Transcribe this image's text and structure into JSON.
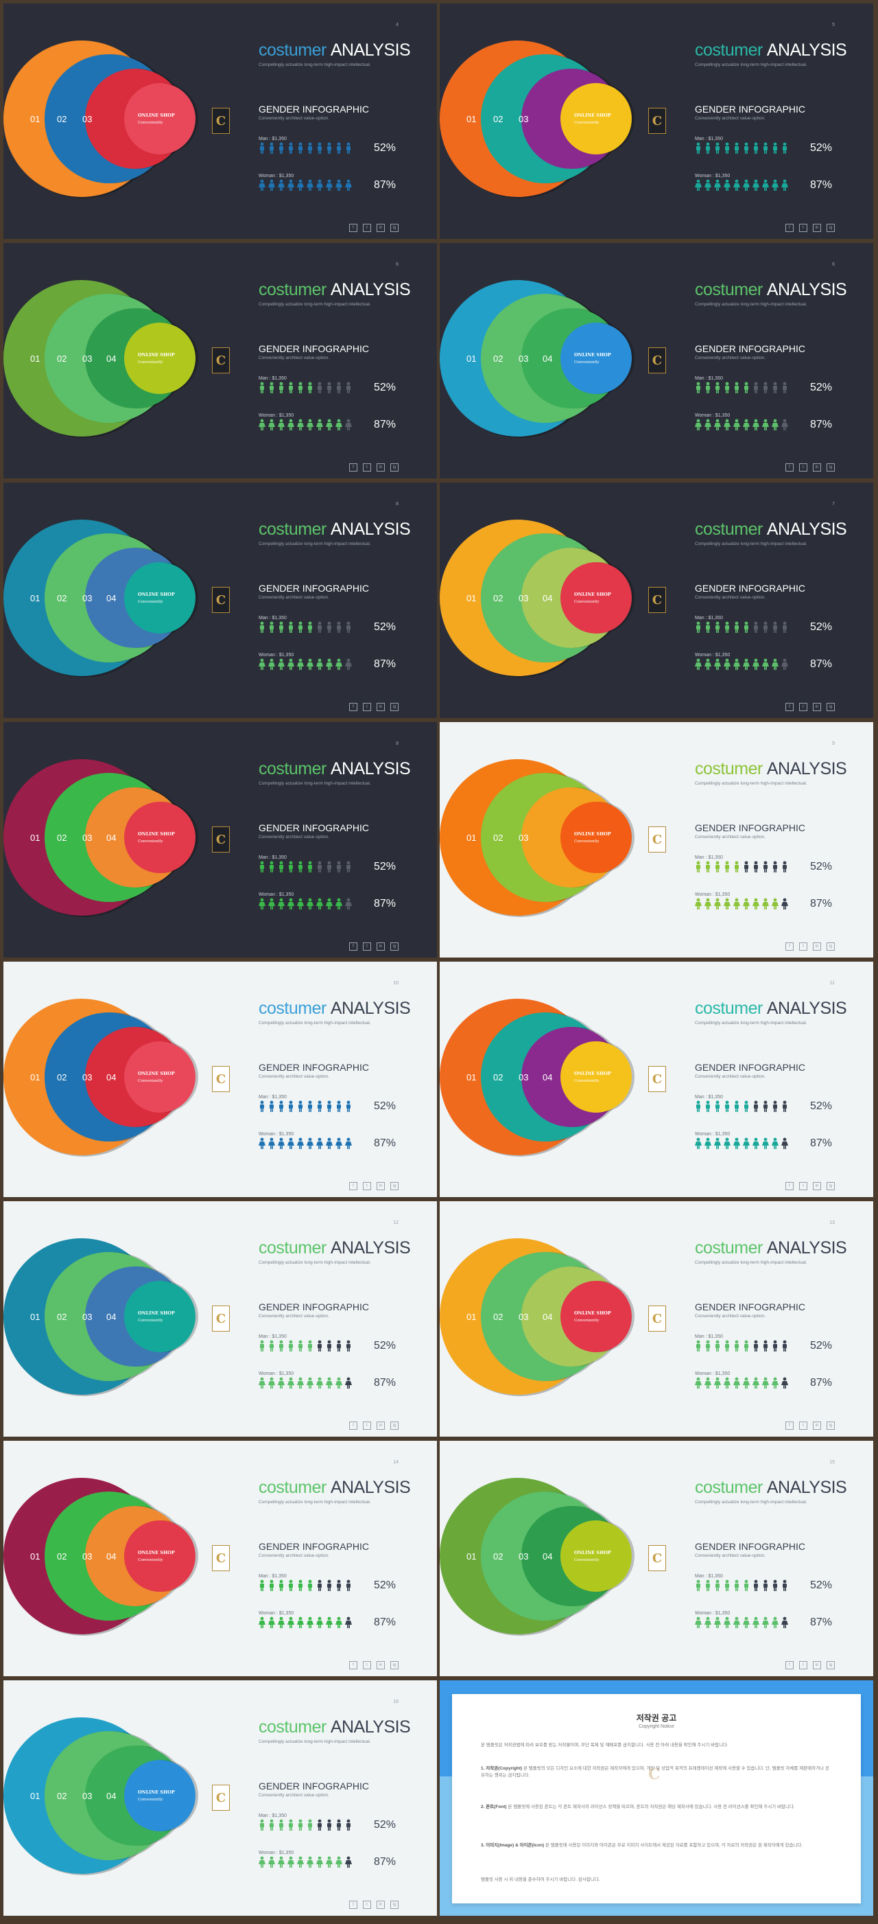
{
  "slides": [
    {
      "theme": "dark",
      "page": "4",
      "title_accent": "costumer",
      "title_main": "ANALYSIS",
      "title_accent_color": "#3aa0d8",
      "subtitle": "Compellingly actualize long-term high-impact intellectual.",
      "ring_colors": [
        "#f48a28",
        "#1f73b2",
        "#d92c3c",
        "#e8485a"
      ],
      "ring_labels": [
        "01",
        "02",
        "03"
      ],
      "shop_title": "ONLINE SHOP",
      "shop_sub": "Conveniently",
      "icon_color": "#1f73b2",
      "gender_title": "GENDER INFOGRAPHIC",
      "gender_sub": "Conveniently architect value-option.",
      "man_label": "Man : $1,350",
      "man_pct": "52%",
      "man_filled": 10,
      "woman_label": "Woman : $1,350",
      "woman_pct": "87%",
      "woman_filled": 10
    },
    {
      "theme": "dark",
      "page": "5",
      "title_accent": "costumer",
      "title_main": "ANALYSIS",
      "title_accent_color": "#2ab8a8",
      "subtitle": "Compellingly actualize long-term high-impact intellectual.",
      "ring_colors": [
        "#f06a1e",
        "#1aa89a",
        "#8a2a8f",
        "#f4c21a"
      ],
      "ring_labels": [
        "01",
        "02",
        "03"
      ],
      "shop_title": "ONLINE SHOP",
      "shop_sub": "Conveniently",
      "icon_color": "#1aa89a",
      "gender_title": "GENDER INFOGRAPHIC",
      "gender_sub": "Conveniently architect value-option.",
      "man_label": "Man : $1,350",
      "man_pct": "52%",
      "man_filled": 10,
      "woman_label": "Woman : $1,350",
      "woman_pct": "87%",
      "woman_filled": 10
    },
    {
      "theme": "dark",
      "page": "6",
      "title_accent": "costumer",
      "title_main": "ANALYSIS",
      "title_accent_color": "#5cc46a",
      "subtitle": "Compellingly actualize long-term high-impact intellectual.",
      "ring_colors": [
        "#6aa83a",
        "#5cbf6a",
        "#2e9e4e",
        "#b0c81e"
      ],
      "ring_labels": [
        "01",
        "02",
        "03",
        "04"
      ],
      "shop_title": "ONLINE SHOP",
      "shop_sub": "Conveniently",
      "icon_color": "#5cbf6a",
      "gender_title": "GENDER INFOGRAPHIC",
      "gender_sub": "Conveniently architect value-option.",
      "man_label": "Man : $1,350",
      "man_pct": "52%",
      "man_filled": 6,
      "woman_label": "Woman : $1,350",
      "woman_pct": "87%",
      "woman_filled": 9
    },
    {
      "theme": "dark",
      "page": "6",
      "title_accent": "costumer",
      "title_main": "ANALYSIS",
      "title_accent_color": "#5cc46a",
      "subtitle": "Compellingly actualize long-term high-impact intellectual.",
      "ring_colors": [
        "#22a0c8",
        "#5cbf6a",
        "#3aae58",
        "#2a8fd8"
      ],
      "ring_labels": [
        "01",
        "02",
        "03",
        "04"
      ],
      "shop_title": "ONLINE SHOP",
      "shop_sub": "Conveniently",
      "icon_color": "#5cbf6a",
      "gender_title": "GENDER INFOGRAPHIC",
      "gender_sub": "Conveniently architect value-option.",
      "man_label": "Man : $1,350",
      "man_pct": "52%",
      "man_filled": 6,
      "woman_label": "Woman : $1,350",
      "woman_pct": "87%",
      "woman_filled": 9
    },
    {
      "theme": "dark",
      "page": "8",
      "title_accent": "costumer",
      "title_main": "ANALYSIS",
      "title_accent_color": "#5cc46a",
      "subtitle": "Compellingly actualize long-term high-impact intellectual.",
      "ring_colors": [
        "#1a8aa8",
        "#5cbf6a",
        "#3e78b4",
        "#14a89a"
      ],
      "ring_labels": [
        "01",
        "02",
        "03",
        "04"
      ],
      "shop_title": "ONLINE SHOP",
      "shop_sub": "Conveniently",
      "icon_color": "#5cbf6a",
      "gender_title": "GENDER INFOGRAPHIC",
      "gender_sub": "Conveniently architect value-option.",
      "man_label": "Man : $1,350",
      "man_pct": "52%",
      "man_filled": 6,
      "woman_label": "Woman : $1,350",
      "woman_pct": "87%",
      "woman_filled": 9
    },
    {
      "theme": "dark",
      "page": "7",
      "title_accent": "costumer",
      "title_main": "ANALYSIS",
      "title_accent_color": "#5cc46a",
      "subtitle": "Compellingly actualize long-term high-impact intellectual.",
      "ring_colors": [
        "#f4a820",
        "#5cbf6a",
        "#a8c85a",
        "#e2384a"
      ],
      "ring_labels": [
        "01",
        "02",
        "03",
        "04"
      ],
      "shop_title": "ONLINE SHOP",
      "shop_sub": "Conveniently",
      "icon_color": "#5cbf6a",
      "gender_title": "GENDER INFOGRAPHIC",
      "gender_sub": "Conveniently architect value-option.",
      "man_label": "Man : $1,350",
      "man_pct": "52%",
      "man_filled": 6,
      "woman_label": "Woman : $1,350",
      "woman_pct": "87%",
      "woman_filled": 9
    },
    {
      "theme": "dark",
      "page": "8",
      "title_accent": "costumer",
      "title_main": "ANALYSIS",
      "title_accent_color": "#5cc46a",
      "subtitle": "Compellingly actualize long-term high-impact intellectual.",
      "ring_colors": [
        "#9a1e4a",
        "#3ab84a",
        "#f08a30",
        "#e23a4a"
      ],
      "ring_labels": [
        "01",
        "02",
        "03",
        "04"
      ],
      "shop_title": "ONLINE SHOP",
      "shop_sub": "Conveniently",
      "icon_color": "#3ab84a",
      "gender_title": "GENDER INFOGRAPHIC",
      "gender_sub": "Conveniently architect value-option.",
      "man_label": "Man : $1,350",
      "man_pct": "52%",
      "man_filled": 6,
      "woman_label": "Woman : $1,350",
      "woman_pct": "87%",
      "woman_filled": 9
    },
    {
      "theme": "light",
      "page": "9",
      "title_accent": "costumer",
      "title_main": "ANALYSIS",
      "title_accent_color": "#8cc43a",
      "subtitle": "Compellingly actualize long-term high-impact intellectual.",
      "ring_colors": [
        "#f47a14",
        "#8cc43a",
        "#f4a020",
        "#f25c14"
      ],
      "ring_labels": [
        "01",
        "02",
        "03"
      ],
      "shop_title": "ONLINE SHOP",
      "shop_sub": "Conveniently",
      "icon_color": "#8cc43a",
      "gender_title": "GENDER INFOGRAPHIC",
      "gender_sub": "Conveniently architect value-option.",
      "man_label": "Man : $1,350",
      "man_pct": "52%",
      "man_filled": 5,
      "woman_label": "Woman : $1,350",
      "woman_pct": "87%",
      "woman_filled": 9
    },
    {
      "theme": "light",
      "page": "10",
      "title_accent": "costumer",
      "title_main": "ANALYSIS",
      "title_accent_color": "#3aa0d8",
      "subtitle": "Compellingly actualize long-term high-impact intellectual.",
      "ring_colors": [
        "#f48a28",
        "#1f73b2",
        "#d92c3c",
        "#e8485a"
      ],
      "ring_labels": [
        "01",
        "02",
        "03",
        "04"
      ],
      "shop_title": "ONLINE SHOP",
      "shop_sub": "Conveniently",
      "icon_color": "#1f73b2",
      "gender_title": "GENDER INFOGRAPHIC",
      "gender_sub": "Conveniently architect value-option.",
      "man_label": "Man : $1,350",
      "man_pct": "52%",
      "man_filled": 10,
      "woman_label": "Woman : $1,350",
      "woman_pct": "87%",
      "woman_filled": 10
    },
    {
      "theme": "light",
      "page": "11",
      "title_accent": "costumer",
      "title_main": "ANALYSIS",
      "title_accent_color": "#2ab8a8",
      "subtitle": "Compellingly actualize long-term high-impact intellectual.",
      "ring_colors": [
        "#f06a1e",
        "#1aa89a",
        "#8a2a8f",
        "#f4c21a"
      ],
      "ring_labels": [
        "01",
        "02",
        "03",
        "04"
      ],
      "shop_title": "ONLINE SHOP",
      "shop_sub": "Conveniently",
      "icon_color": "#1aa89a",
      "gender_title": "GENDER INFOGRAPHIC",
      "gender_sub": "Conveniently architect value-option.",
      "man_label": "Man : $1,350",
      "man_pct": "52%",
      "man_filled": 6,
      "woman_label": "Woman : $1,350",
      "woman_pct": "87%",
      "woman_filled": 9
    },
    {
      "theme": "light",
      "page": "12",
      "title_accent": "costumer",
      "title_main": "ANALYSIS",
      "title_accent_color": "#5cc46a",
      "subtitle": "Compellingly actualize long-term high-impact intellectual.",
      "ring_colors": [
        "#1a8aa8",
        "#5cbf6a",
        "#3e78b4",
        "#14a89a"
      ],
      "ring_labels": [
        "01",
        "02",
        "03",
        "04"
      ],
      "shop_title": "ONLINE SHOP",
      "shop_sub": "Conveniently",
      "icon_color": "#5cbf6a",
      "gender_title": "GENDER INFOGRAPHIC",
      "gender_sub": "Conveniently architect value-option.",
      "man_label": "Man : $1,350",
      "man_pct": "52%",
      "man_filled": 6,
      "woman_label": "Woman : $1,350",
      "woman_pct": "87%",
      "woman_filled": 9
    },
    {
      "theme": "light",
      "page": "13",
      "title_accent": "costumer",
      "title_main": "ANALYSIS",
      "title_accent_color": "#5cc46a",
      "subtitle": "Compellingly actualize long-term high-impact intellectual.",
      "ring_colors": [
        "#f4a820",
        "#5cbf6a",
        "#a8c85a",
        "#e2384a"
      ],
      "ring_labels": [
        "01",
        "02",
        "03",
        "04"
      ],
      "shop_title": "ONLINE SHOP",
      "shop_sub": "Conveniently",
      "icon_color": "#5cbf6a",
      "gender_title": "GENDER INFOGRAPHIC",
      "gender_sub": "Conveniently architect value-option.",
      "man_label": "Man : $1,350",
      "man_pct": "52%",
      "man_filled": 6,
      "woman_label": "Woman : $1,350",
      "woman_pct": "87%",
      "woman_filled": 9
    },
    {
      "theme": "light",
      "page": "14",
      "title_accent": "costumer",
      "title_main": "ANALYSIS",
      "title_accent_color": "#5cc46a",
      "subtitle": "Compellingly actualize long-term high-impact intellectual.",
      "ring_colors": [
        "#9a1e4a",
        "#3ab84a",
        "#f08a30",
        "#e23a4a"
      ],
      "ring_labels": [
        "01",
        "02",
        "03",
        "04"
      ],
      "shop_title": "ONLINE SHOP",
      "shop_sub": "Conveniently",
      "icon_color": "#3ab84a",
      "gender_title": "GENDER INFOGRAPHIC",
      "gender_sub": "Conveniently architect value-option.",
      "man_label": "Man : $1,350",
      "man_pct": "52%",
      "man_filled": 6,
      "woman_label": "Woman : $1,350",
      "woman_pct": "87%",
      "woman_filled": 9
    },
    {
      "theme": "light",
      "page": "15",
      "title_accent": "costumer",
      "title_main": "ANALYSIS",
      "title_accent_color": "#5cc46a",
      "subtitle": "Compellingly actualize long-term high-impact intellectual.",
      "ring_colors": [
        "#6aa83a",
        "#5cbf6a",
        "#2e9e4e",
        "#b0c81e"
      ],
      "ring_labels": [
        "01",
        "02",
        "03",
        "04"
      ],
      "shop_title": "ONLINE SHOP",
      "shop_sub": "Conveniently",
      "icon_color": "#5cbf6a",
      "gender_title": "GENDER INFOGRAPHIC",
      "gender_sub": "Conveniently architect value-option.",
      "man_label": "Man : $1,350",
      "man_pct": "52%",
      "man_filled": 6,
      "woman_label": "Woman : $1,350",
      "woman_pct": "87%",
      "woman_filled": 9
    },
    {
      "theme": "light",
      "page": "16",
      "title_accent": "costumer",
      "title_main": "ANALYSIS",
      "title_accent_color": "#5cc46a",
      "subtitle": "Compellingly actualize long-term high-impact intellectual.",
      "ring_colors": [
        "#22a0c8",
        "#5cbf6a",
        "#3aae58",
        "#2a8fd8"
      ],
      "ring_labels": [
        "01",
        "02",
        "03",
        "04"
      ],
      "shop_title": "ONLINE SHOP",
      "shop_sub": "Conveniently",
      "icon_color": "#5cbf6a",
      "gender_title": "GENDER INFOGRAPHIC",
      "gender_sub": "Conveniently architect value-option.",
      "man_label": "Man : $1,350",
      "man_pct": "52%",
      "man_filled": 6,
      "woman_label": "Woman : $1,350",
      "woman_pct": "87%",
      "woman_filled": 9
    }
  ],
  "social_icons": [
    "f",
    "t",
    "in",
    "ig"
  ],
  "icon_count": 10,
  "inactive_icon_color_dark": "#5a5e6a",
  "inactive_icon_color_light": "#3a4250",
  "logo_letter": "C",
  "copyright": {
    "title": "저작권 공고",
    "subtitle": "Copyright Notice",
    "intro": "본 템플릿은 저작권법에 따라 보호를 받는 저작물이며, 무단 복제 및 재배포를 금지합니다. 사용 전 아래 내용을 확인해 주시기 바랍니다.",
    "p1_head": "1. 저작권(Copyright)",
    "p1": "본 템플릿의 모든 디자인 요소에 대한 저작권은 제작자에게 있으며, 개인 및 상업적 목적의 프레젠테이션 제작에 사용할 수 있습니다. 단, 템플릿 자체를 재판매하거나 공유하는 행위는 금지됩니다.",
    "p2_head": "2. 폰트(Font)",
    "p2": "본 템플릿에 사용된 폰트는 각 폰트 제작사의 라이선스 정책을 따르며, 폰트의 저작권은 해당 제작사에 있습니다. 사용 전 라이선스를 확인해 주시기 바랍니다.",
    "p3_head": "3. 이미지(Image) & 아이콘(Icon)",
    "p3": "본 템플릿에 사용된 이미지와 아이콘은 무료 이미지 사이트에서 제공된 자료를 포함하고 있으며, 각 자료의 저작권은 원 제작자에게 있습니다.",
    "footer": "템플릿 사용 시 위 내용을 준수하여 주시기 바랍니다. 감사합니다."
  }
}
